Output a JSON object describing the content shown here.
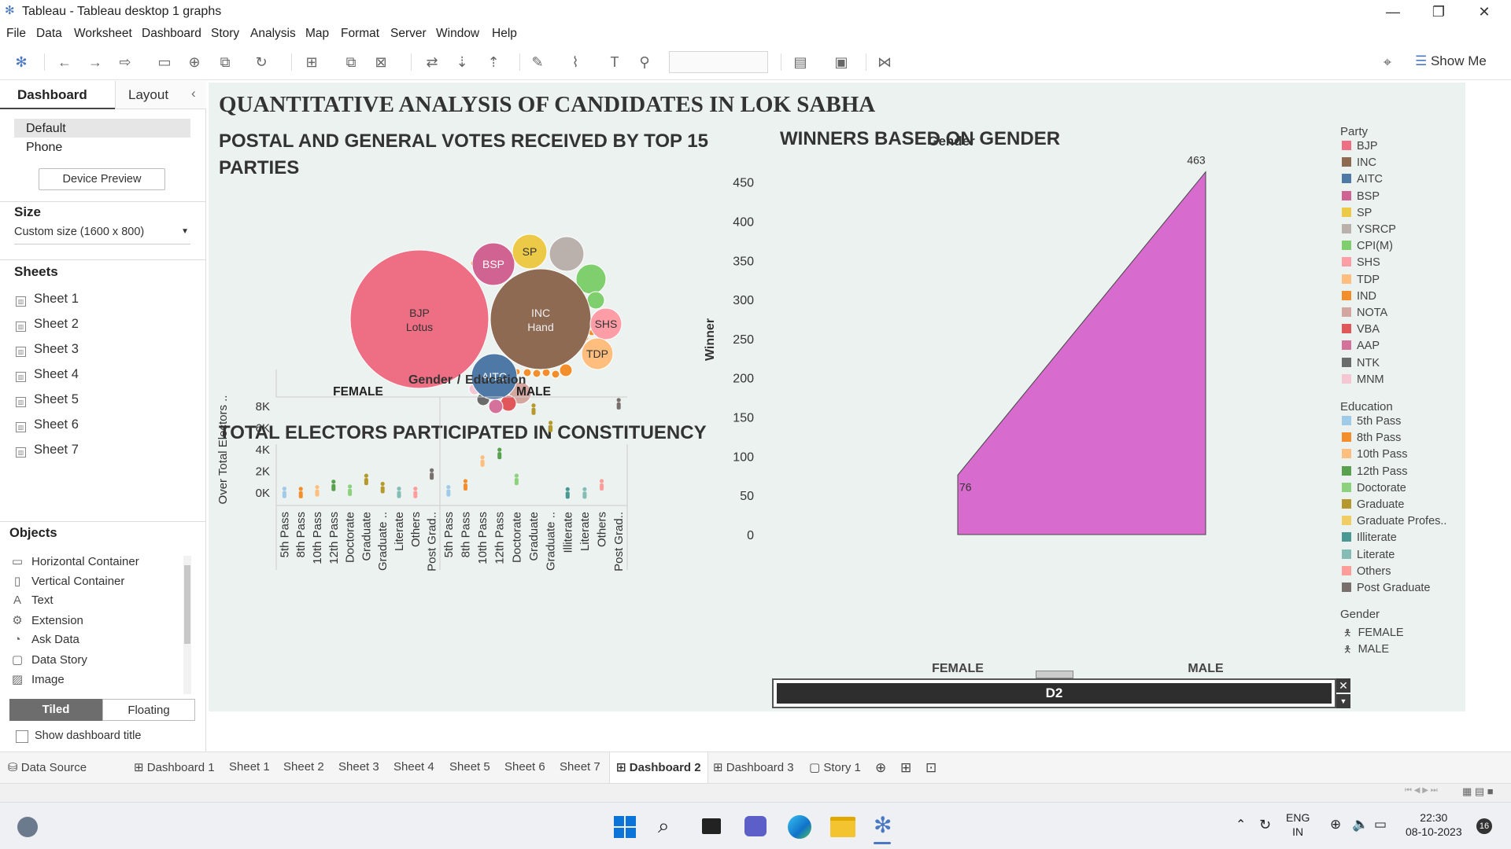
{
  "window": {
    "title": "Tableau - Tableau desktop 1 graphs"
  },
  "menu": [
    "File",
    "Data",
    "Worksheet",
    "Dashboard",
    "Story",
    "Analysis",
    "Map",
    "Format",
    "Server",
    "Window",
    "Help"
  ],
  "toolbar": {
    "show_me": "Show Me"
  },
  "leftpane": {
    "tab_dashboard": "Dashboard",
    "tab_layout": "Layout",
    "device_default": "Default",
    "device_phone": "Phone",
    "device_preview": "Device Preview",
    "size_title": "Size",
    "size_value": "Custom size (1600 x 800)",
    "sheets_title": "Sheets",
    "sheets": [
      "Sheet 1",
      "Sheet 2",
      "Sheet 3",
      "Sheet 4",
      "Sheet 5",
      "Sheet 6",
      "Sheet 7"
    ],
    "objects_title": "Objects",
    "objects": [
      "Horizontal Container",
      "Vertical Container",
      "Text",
      "Extension",
      "Ask Data",
      "Data Story",
      "Image"
    ],
    "tiled": "Tiled",
    "floating": "Floating",
    "show_title": "Show dashboard title"
  },
  "dashboard": {
    "main_title": "QUANTITATIVE ANALYSIS OF CANDIDATES IN LOK SABHA",
    "bubble_title": "POSTAL AND GENERAL VOTES RECEIVED BY TOP 15 PARTIES",
    "electors_title": "TOTAL ELECTORS PARTICIPATED IN CONSTITUENCY",
    "winners_title": "WINNERS BASED ON GENDER",
    "floating_label": "D2",
    "legend": {
      "party_title": "Party",
      "parties": [
        {
          "name": "BJP",
          "color": "#ee6e83"
        },
        {
          "name": "INC",
          "color": "#8f6a53"
        },
        {
          "name": "AITC",
          "color": "#4e79a7"
        },
        {
          "name": "BSP",
          "color": "#d06392"
        },
        {
          "name": "SP",
          "color": "#edc948"
        },
        {
          "name": "YSRCP",
          "color": "#bab0ac"
        },
        {
          "name": "CPI(M)",
          "color": "#7fcf6e"
        },
        {
          "name": "SHS",
          "color": "#ff9da7"
        },
        {
          "name": "TDP",
          "color": "#ffbe7d"
        },
        {
          "name": "IND",
          "color": "#f28e2b"
        },
        {
          "name": "NOTA",
          "color": "#d4a6a0"
        },
        {
          "name": "VBA",
          "color": "#e15759"
        },
        {
          "name": "AAP",
          "color": "#d4729b"
        },
        {
          "name": "NTK",
          "color": "#6b6b6b"
        },
        {
          "name": "MNM",
          "color": "#f5c6d3"
        }
      ],
      "education_title": "Education",
      "education": [
        {
          "name": "5th Pass",
          "color": "#a0cbe8"
        },
        {
          "name": "8th Pass",
          "color": "#f28e2b"
        },
        {
          "name": "10th Pass",
          "color": "#ffbe7d"
        },
        {
          "name": "12th Pass",
          "color": "#59a14f"
        },
        {
          "name": "Doctorate",
          "color": "#8cd17d"
        },
        {
          "name": "Graduate",
          "color": "#b6992d"
        },
        {
          "name": "Graduate Profes..",
          "color": "#f1ce63"
        },
        {
          "name": "Illiterate",
          "color": "#499894"
        },
        {
          "name": "Literate",
          "color": "#86bcb6"
        },
        {
          "name": "Others",
          "color": "#ff9d9a"
        },
        {
          "name": "Post Graduate",
          "color": "#79706e"
        }
      ],
      "gender_title": "Gender",
      "genders": [
        "FEMALE",
        "MALE"
      ]
    }
  },
  "chart_data": [
    {
      "type": "bubble",
      "title": "POSTAL AND GENERAL VOTES RECEIVED BY TOP 15 PARTIES",
      "labeled_bubbles": [
        {
          "party": "BJP",
          "label": "BJP",
          "symbol": "Lotus"
        },
        {
          "party": "INC",
          "label": "INC",
          "symbol": "Hand"
        },
        {
          "party": "BSP",
          "label": "BSP"
        },
        {
          "party": "SP",
          "label": "SP"
        },
        {
          "party": "SHS",
          "label": "SHS"
        },
        {
          "party": "TDP",
          "label": "TDP"
        },
        {
          "party": "AITC",
          "label": "AITC"
        }
      ]
    },
    {
      "type": "scatter",
      "title": "TOTAL ELECTORS PARTICIPATED IN CONSTITUENCY",
      "header": "Gender",
      "header_sep": "/",
      "header2": "Education",
      "ylabel": "Over Total Electors ..",
      "yticks": [
        "8K",
        "6K",
        "4K",
        "2K",
        "0K"
      ],
      "ylim": [
        0,
        9000
      ],
      "panels": [
        {
          "name": "FEMALE",
          "categories": [
            "5th Pass",
            "8th Pass",
            "10th Pass",
            "12th Pass",
            "Doctorate",
            "Graduate",
            "Graduate ..",
            "Literate",
            "Others",
            "Post Grad.."
          ],
          "values": [
            100,
            80,
            250,
            750,
            300,
            1300,
            550,
            100,
            100,
            1800
          ]
        },
        {
          "name": "MALE",
          "categories": [
            "5th Pass",
            "8th Pass",
            "10th Pass",
            "12th Pass",
            "Doctorate",
            "Graduate",
            "Graduate ..",
            "Illiterate",
            "Literate",
            "Others",
            "Post Grad.."
          ],
          "values": [
            250,
            800,
            3000,
            3700,
            1300,
            7800,
            6200,
            50,
            50,
            800,
            8300
          ]
        }
      ]
    },
    {
      "type": "area",
      "title": "WINNERS BASED ON GENDER",
      "header": "Gender",
      "categories": [
        "FEMALE",
        "MALE"
      ],
      "values": [
        76,
        463
      ],
      "ylabel": "Winner",
      "yticks": [
        "450",
        "400",
        "350",
        "300",
        "250",
        "200",
        "150",
        "100",
        "50",
        "0"
      ],
      "ylim": [
        0,
        480
      ],
      "color": "#d86bce"
    }
  ],
  "bottom_tabs": [
    "Data Source",
    "Dashboard 1",
    "Sheet 1",
    "Sheet 2",
    "Sheet 3",
    "Sheet 4",
    "Sheet 5",
    "Sheet 6",
    "Sheet 7",
    "Dashboard 2",
    "Dashboard 3",
    "Story 1"
  ],
  "active_tab": "Dashboard 2",
  "taskbar": {
    "lang1": "ENG",
    "lang2": "IN",
    "time": "22:30",
    "date": "08-10-2023",
    "badge": "16"
  }
}
